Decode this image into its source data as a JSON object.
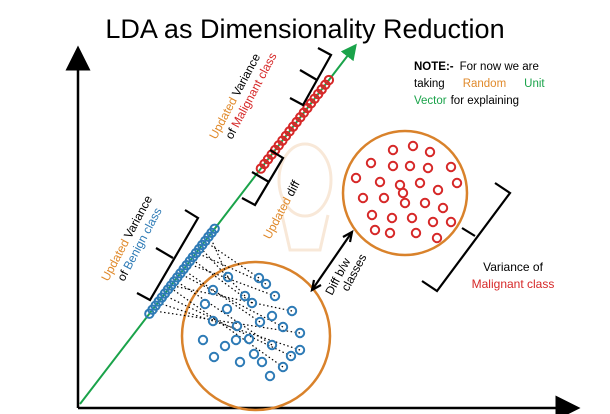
{
  "title": "LDA as Dimensionality Reduction",
  "note": {
    "bold": "NOTE:-",
    "line1_rest": "For now we are",
    "line2_a": "taking",
    "line2_b": "Random",
    "line2_c": "Unit",
    "line3_a": "Vector",
    "line3_b": "for explaining"
  },
  "labels": {
    "updated_word": "Updated",
    "variance_word": "Variance",
    "of_word": "of",
    "malignant_class": "Malignant class",
    "benign_class": "Benign class",
    "diff_word": "diff",
    "diff_bw": "Diff b/w",
    "classes": "classes",
    "variance_of": "Variance of"
  },
  "colors": {
    "benign": "#2e7bb6",
    "malignant": "#d62828",
    "circle": "#d9822b",
    "projection_line": "#1aa34a",
    "updated_text": "#e08a2c",
    "unit_vector_text": "#1aa34a",
    "axis": "#000000"
  }
}
